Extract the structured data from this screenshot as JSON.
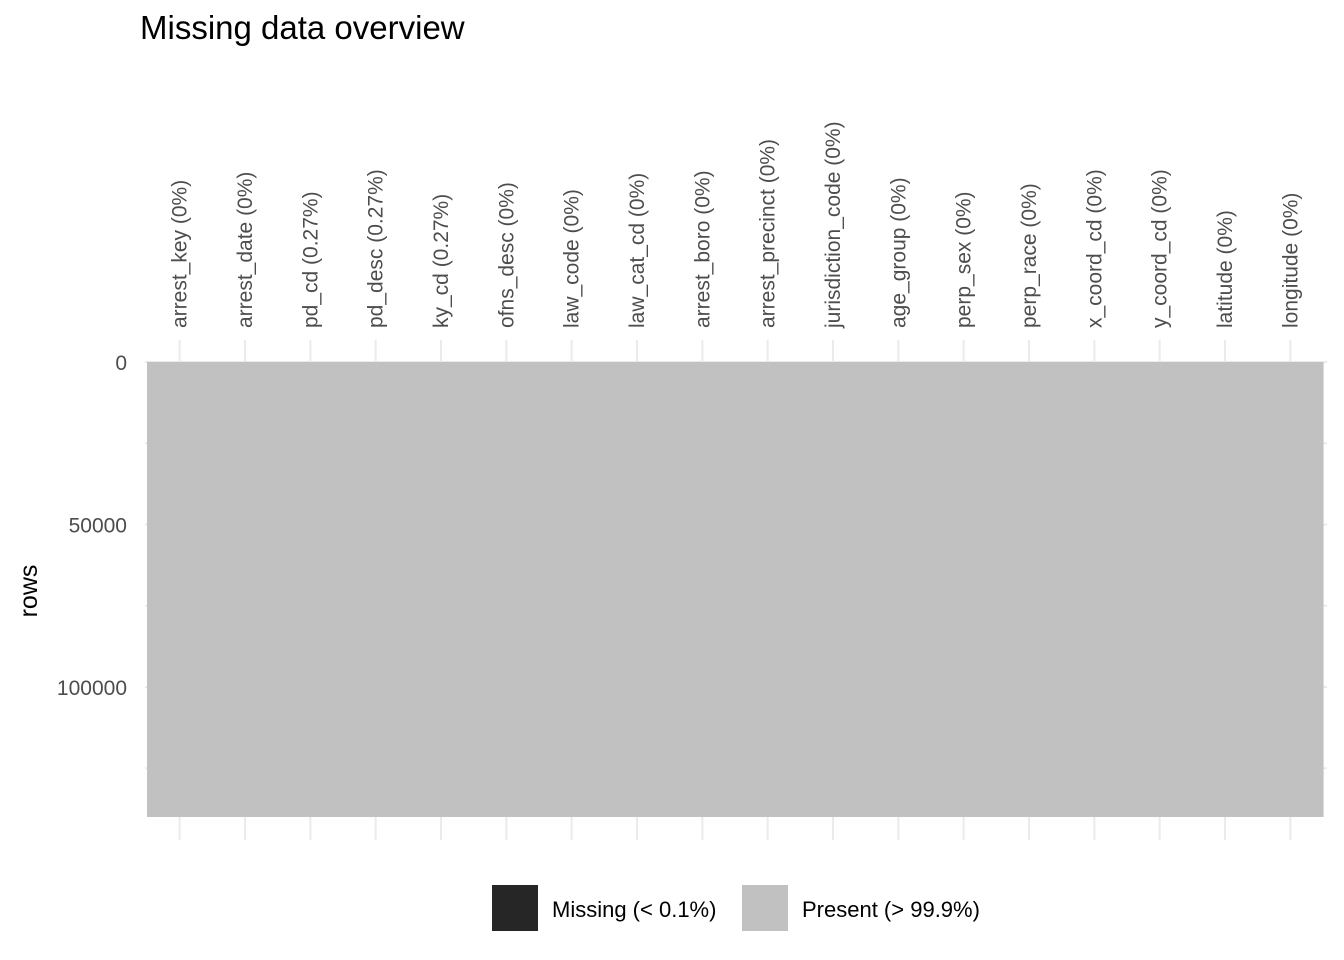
{
  "chart_data": {
    "type": "heatmap",
    "title": "Missing data overview",
    "xlabel": "",
    "ylabel": "rows",
    "n_rows": 140000,
    "ylim": [
      0,
      140000
    ],
    "y_ticks": [
      0,
      50000,
      100000
    ],
    "y_tick_labels": [
      "0",
      "50000",
      "100000"
    ],
    "columns": [
      "arrest_key (0%)",
      "arrest_date (0%)",
      "pd_cd (0.27%)",
      "pd_desc (0.27%)",
      "ky_cd (0.27%)",
      "ofns_desc (0%)",
      "law_code (0%)",
      "law_cat_cd (0%)",
      "arrest_boro (0%)",
      "arrest_precinct (0%)",
      "jurisdiction_code (0%)",
      "age_group (0%)",
      "perp_sex (0%)",
      "perp_race (0%)",
      "x_coord_cd (0%)",
      "y_coord_cd (0%)",
      "latitude (0%)",
      "longitude (0%)"
    ],
    "legend": {
      "position": "bottom",
      "items": [
        {
          "label": "Missing (< 0.1%)",
          "color": "#262626"
        },
        {
          "label": "Present (> 99.9%)",
          "color": "#c1c1c1"
        }
      ]
    },
    "colors": {
      "present": "#c1c1c1",
      "missing": "#262626",
      "grid": "#ebebeb"
    },
    "grid": true
  }
}
